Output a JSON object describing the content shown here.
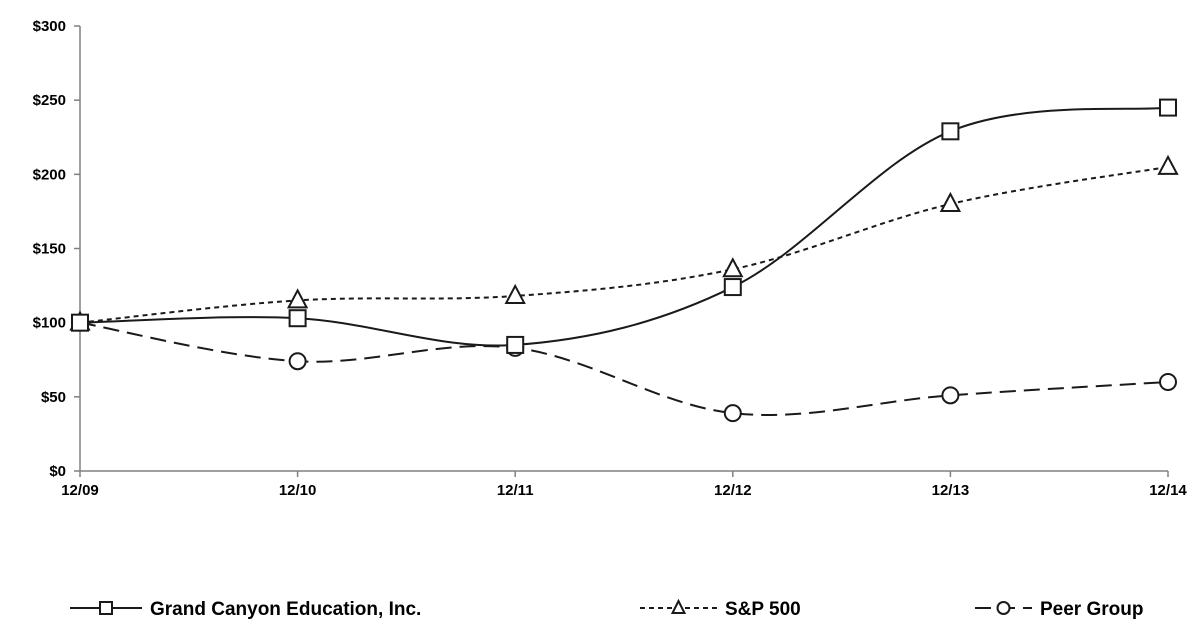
{
  "chart_data": {
    "type": "line",
    "categories": [
      "12/09",
      "12/10",
      "12/11",
      "12/12",
      "12/13",
      "12/14"
    ],
    "y_ticks": [
      "$0",
      "$50",
      "$100",
      "$150",
      "$200",
      "$250",
      "$300"
    ],
    "ylim": [
      0,
      300
    ],
    "grid": false,
    "legend_position": "bottom",
    "series": [
      {
        "name": "Grand Canyon Education, Inc.",
        "marker": "square",
        "dash": "solid",
        "color": "#1a1a1a",
        "values": [
          100,
          103,
          85,
          124,
          229,
          245
        ]
      },
      {
        "name": "S&P 500",
        "marker": "triangle",
        "dash": "dotted",
        "color": "#1a1a1a",
        "values": [
          100,
          115,
          118,
          136,
          180,
          205
        ]
      },
      {
        "name": "Peer Group",
        "marker": "circle",
        "dash": "dashed",
        "color": "#1a1a1a",
        "values": [
          100,
          74,
          83,
          39,
          51,
          60
        ]
      }
    ]
  }
}
